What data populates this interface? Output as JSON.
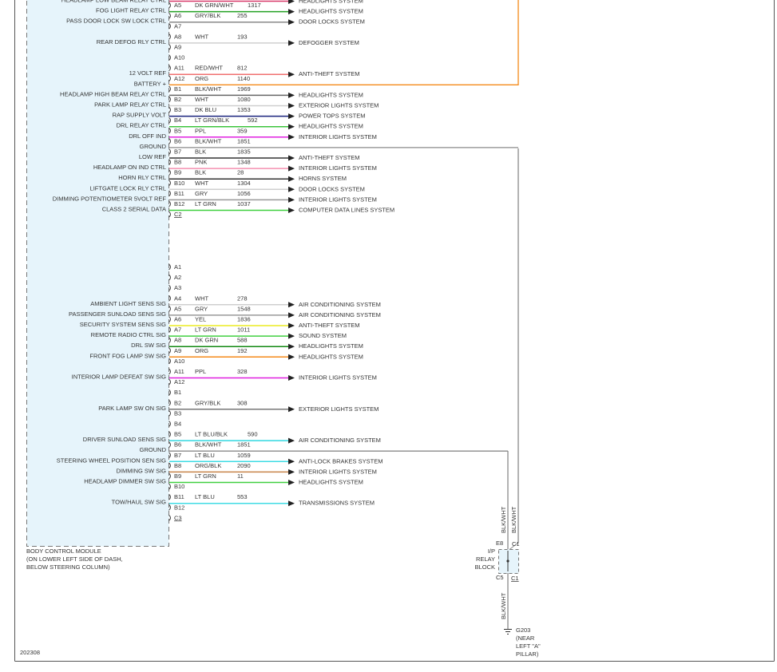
{
  "module": {
    "name": "BODY CONTROL MODULE",
    "location": [
      "(ON LOWER LEFT SIDE OF DASH,",
      "BELOW STEERING COLUMN)"
    ]
  },
  "connectors": [
    {
      "end": "C2",
      "slots": [
        {
          "label": "HEADLAMP LOW BEAM RELAY CTRL",
          "system": "HEADLIGHTS SYSTEM",
          "color": "#d83a6a"
        },
        {
          "pin": "A5",
          "label": "FOG LIGHT RELAY CTRL",
          "wire": "DK GRN/WHT",
          "circuit": "1317",
          "system": "HEADLIGHTS SYSTEM",
          "color": "#22a022"
        },
        {
          "pin": "A6",
          "label": "PASS DOOR LOCK SW LOCK CTRL",
          "wire": "GRY/BLK",
          "circuit": "255",
          "system": "DOOR LOCKS SYSTEM",
          "color": "#8a8a8a"
        },
        {
          "pin": "A7"
        },
        {
          "pin": "A8",
          "label": "REAR DEFOG RLY CTRL",
          "wire": "WHT",
          "circuit": "193",
          "system": "DEFOGGER SYSTEM",
          "color": "#cfcfcf"
        },
        {
          "pin": "A9"
        },
        {
          "pin": "A10"
        },
        {
          "pin": "A11",
          "label": "12 VOLT REF",
          "wire": "RED/WHT",
          "circuit": "812",
          "system": "ANTI-THEFT SYSTEM",
          "color": "#f07070"
        },
        {
          "pin": "A12",
          "label": "BATTERY +",
          "wire": "ORG",
          "circuit": "1140",
          "color": "#f58a1a",
          "route": "up"
        },
        {
          "pin": "B1",
          "label": "HEADLAMP HIGH BEAM RELAY CTRL",
          "wire": "BLK/WHT",
          "circuit": "1969",
          "system": "HEADLIGHTS SYSTEM",
          "color": "#666666"
        },
        {
          "pin": "B2",
          "label": "PARK LAMP RELAY CTRL",
          "wire": "WHT",
          "circuit": "1080",
          "system": "EXTERIOR LIGHTS SYSTEM",
          "color": "#cfcfcf"
        },
        {
          "pin": "B3",
          "label": "RAP SUPPLY VOLT",
          "wire": "DK BLU",
          "circuit": "1353",
          "system": "POWER TOPS SYSTEM",
          "color": "#1a237e"
        },
        {
          "pin": "B4",
          "label": "DRL RELAY CTRL",
          "wire": "LT GRN/BLK",
          "circuit": "592",
          "system": "HEADLIGHTS SYSTEM",
          "color": "#3cc43c"
        },
        {
          "pin": "B5",
          "label": "DRL OFF IND",
          "wire": "PPL",
          "circuit": "359",
          "system": "INTERIOR LIGHTS SYSTEM",
          "color": "#e020e0"
        },
        {
          "pin": "B6",
          "label": "GROUND",
          "wire": "BLK/WHT",
          "circuit": "1851",
          "color": "#8a8a8a",
          "route": "down"
        },
        {
          "pin": "B7",
          "label": "LOW REF",
          "wire": "BLK",
          "circuit": "1835",
          "system": "ANTI-THEFT SYSTEM",
          "color": "#333333"
        },
        {
          "pin": "B8",
          "label": "HEADLAMP ON IND CTRL",
          "wire": "PNK",
          "circuit": "1348",
          "system": "INTERIOR LIGHTS SYSTEM",
          "color": "#f58fb0"
        },
        {
          "pin": "B9",
          "label": "HORN RLY CTRL",
          "wire": "BLK",
          "circuit": "28",
          "system": "HORNS SYSTEM",
          "color": "#333333"
        },
        {
          "pin": "B10",
          "label": "LIFTGATE LOCK RLY CTRL",
          "wire": "WHT",
          "circuit": "1304",
          "system": "DOOR LOCKS SYSTEM",
          "color": "#cfcfcf"
        },
        {
          "pin": "B11",
          "label": "DIMMING POTENTIOMETER 5VOLT REF",
          "wire": "GRY",
          "circuit": "1056",
          "system": "INTERIOR LIGHTS SYSTEM",
          "color": "#999999"
        },
        {
          "pin": "B12",
          "label": "CLASS 2 SERIAL DATA",
          "wire": "LT GRN",
          "circuit": "1037",
          "system": "COMPUTER DATA LINES SYSTEM",
          "color": "#40d040"
        }
      ]
    },
    {
      "end": "C3",
      "slots": [
        {
          "pin": "A1"
        },
        {
          "pin": "A2"
        },
        {
          "pin": "A3"
        },
        {
          "pin": "A4",
          "label": "AMBIENT LIGHT SENS SIG",
          "wire": "WHT",
          "circuit": "278",
          "system": "AIR CONDITIONING SYSTEM",
          "color": "#cfcfcf"
        },
        {
          "pin": "A5",
          "label": "PASSENGER SUNLOAD SENS SIG",
          "wire": "GRY",
          "circuit": "1548",
          "system": "AIR CONDITIONING SYSTEM",
          "color": "#999999"
        },
        {
          "pin": "A6",
          "label": "SECURITY SYSTEM SENS SIG",
          "wire": "YEL",
          "circuit": "1836",
          "system": "ANTI-THEFT SYSTEM",
          "color": "#ecec20"
        },
        {
          "pin": "A7",
          "label": "REMOTE RADIO CTRL SIG",
          "wire": "LT GRN",
          "circuit": "1011",
          "system": "SOUND SYSTEM",
          "color": "#40d040"
        },
        {
          "pin": "A8",
          "label": "DRL SW SIG",
          "wire": "DK GRN",
          "circuit": "588",
          "system": "HEADLIGHTS SYSTEM",
          "color": "#118811"
        },
        {
          "pin": "A9",
          "label": "FRONT FOG LAMP SW SIG",
          "wire": "ORG",
          "circuit": "192",
          "system": "HEADLIGHTS SYSTEM",
          "color": "#f58a1a"
        },
        {
          "pin": "A10"
        },
        {
          "pin": "A11",
          "label": "INTERIOR LAMP DEFEAT SW SIG",
          "wire": "PPL",
          "circuit": "328",
          "system": "INTERIOR LIGHTS SYSTEM",
          "color": "#e020e0"
        },
        {
          "pin": "A12"
        },
        {
          "pin": "B1"
        },
        {
          "pin": "B2",
          "label": "PARK LAMP SW ON SIG",
          "wire": "GRY/BLK",
          "circuit": "308",
          "system": "EXTERIOR LIGHTS SYSTEM",
          "color": "#777777"
        },
        {
          "pin": "B3"
        },
        {
          "pin": "B4"
        },
        {
          "pin": "B5",
          "label": "DRIVER SUNLOAD SENS SIG",
          "wire": "LT BLU/BLK",
          "circuit": "590",
          "system": "AIR CONDITIONING SYSTEM",
          "color": "#30d8e0"
        },
        {
          "pin": "B6",
          "label": "GROUND",
          "wire": "BLK/WHT",
          "circuit": "1851",
          "color": "#8a8a8a",
          "route": "down"
        },
        {
          "pin": "B7",
          "label": "STEERING WHEEL POSITION SEN SIG",
          "wire": "LT BLU",
          "circuit": "1059",
          "system": "ANTI-LOCK BRAKES SYSTEM",
          "color": "#40dce4"
        },
        {
          "pin": "B8",
          "label": "DIMMING SW SIG",
          "wire": "ORG/BLK",
          "circuit": "2090",
          "system": "INTERIOR LIGHTS SYSTEM",
          "color": "#c8844a"
        },
        {
          "pin": "B9",
          "label": "HEADLAMP DIMMER SW SIG",
          "wire": "LT GRN",
          "circuit": "11",
          "system": "HEADLIGHTS SYSTEM",
          "color": "#40d040"
        },
        {
          "pin": "B10"
        },
        {
          "pin": "B11",
          "label": "TOW/HAUL SW SIG",
          "wire": "LT BLU",
          "circuit": "553",
          "system": "TRANSMISSIONS SYSTEM",
          "color": "#40dce4"
        },
        {
          "pin": "B12"
        }
      ]
    }
  ],
  "relay_block": {
    "top_pin": "E8",
    "top_connector": "C1",
    "name": [
      "I/P",
      "RELAY",
      "BLOCK"
    ],
    "bottom_pin": "C5",
    "bottom_connector": "C1"
  },
  "ground_wires": [
    "BLK/WHT",
    "BLK/WHT",
    "BLK/WHT"
  ],
  "ground": {
    "name": "G203",
    "location": [
      "(NEAR",
      "LEFT \"A\"",
      "PILLAR)"
    ]
  },
  "diagram_id": "202308"
}
